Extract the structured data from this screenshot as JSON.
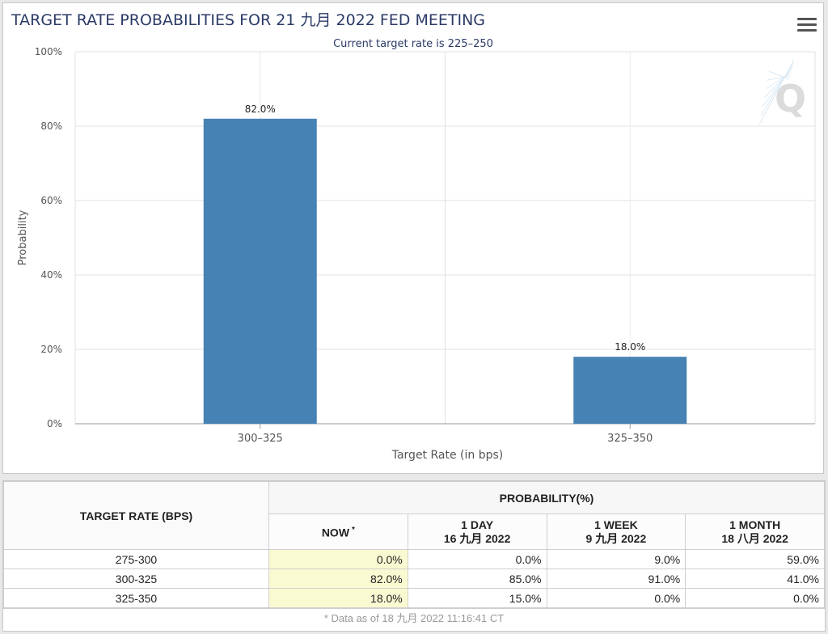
{
  "chart_data": {
    "type": "bar",
    "title": "TARGET RATE PROBABILITIES FOR 21 九月 2022 FED MEETING",
    "subtitle": "Current target rate is 225–250",
    "xlabel": "Target Rate (in bps)",
    "ylabel": "Probability",
    "categories": [
      "300–325",
      "325–350"
    ],
    "values": [
      82.0,
      18.0
    ],
    "data_labels": [
      "82.0%",
      "18.0%"
    ],
    "ylim": [
      0,
      100
    ],
    "yticks": [
      0,
      20,
      40,
      60,
      80,
      100
    ],
    "ytick_labels": [
      "0%",
      "20%",
      "40%",
      "60%",
      "80%",
      "100%"
    ],
    "grid": true,
    "bar_color": "#4682b4"
  },
  "colors": {
    "title": "#2b3a67",
    "bar": "#4682b4",
    "now_cell": "#fafad2"
  },
  "menu_icon": "hamburger-menu-icon",
  "watermark_icon": "q-logo-icon",
  "table": {
    "header": {
      "target": "TARGET RATE (BPS)",
      "probability": "PROBABILITY(%)",
      "now": "NOW",
      "now_mark": "*",
      "day_label": "1 DAY",
      "day_date": "16 九月 2022",
      "week_label": "1 WEEK",
      "week_date": "9 九月 2022",
      "month_label": "1 MONTH",
      "month_date": "18 八月 2022"
    },
    "rows": [
      {
        "rate": "275-300",
        "now": "0.0%",
        "day": "0.0%",
        "week": "9.0%",
        "month": "59.0%"
      },
      {
        "rate": "300-325",
        "now": "82.0%",
        "day": "85.0%",
        "week": "91.0%",
        "month": "41.0%"
      },
      {
        "rate": "325-350",
        "now": "18.0%",
        "day": "15.0%",
        "week": "0.0%",
        "month": "0.0%"
      }
    ],
    "footnote": "* Data as of 18 九月 2022 11:16:41 CT"
  }
}
